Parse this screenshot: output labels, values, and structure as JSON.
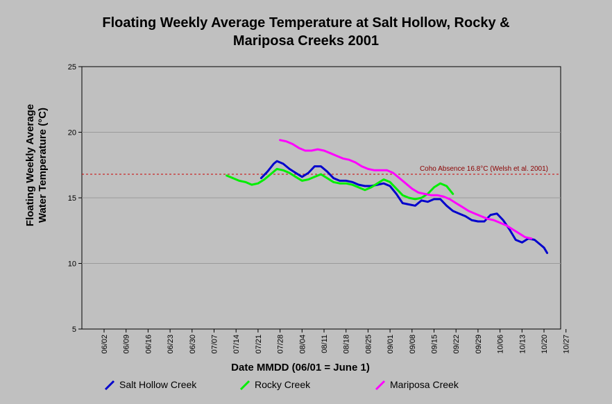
{
  "chart_data": {
    "type": "line",
    "title_line1": "Floating Weekly Average Temperature at Salt Hollow, Rocky &",
    "title_line2": "Mariposa Creeks 2001",
    "xlabel": "Date MMDD (06/01 = June 1)",
    "ylabel_line1": "Floating Weekly Average",
    "ylabel_line2": "Water Temperature (°C)",
    "x_ticks": [
      "06/02",
      "06/09",
      "06/16",
      "06/23",
      "06/30",
      "07/07",
      "07/14",
      "07/21",
      "07/28",
      "08/04",
      "08/11",
      "08/18",
      "08/25",
      "09/01",
      "09/08",
      "09/15",
      "09/22",
      "09/29",
      "10/06",
      "10/13",
      "10/20",
      "10/27"
    ],
    "y_ticks": [
      "25",
      "20",
      "15",
      "10",
      "5"
    ],
    "ylim": [
      5,
      25
    ],
    "grid": "horizontal",
    "legend_position": "bottom",
    "threshold": {
      "value": 16.8,
      "label": "Coho Absence 16.8°C (Welsh et al. 2001)",
      "color": "#cc0000"
    },
    "series": [
      {
        "name": "Salt Hollow Creek",
        "color": "#0000cc",
        "points": [
          [
            "07/22",
            16.5
          ],
          [
            "07/24",
            17.0
          ],
          [
            "07/26",
            17.6
          ],
          [
            "07/27",
            17.8
          ],
          [
            "07/29",
            17.6
          ],
          [
            "07/31",
            17.2
          ],
          [
            "08/02",
            16.9
          ],
          [
            "08/04",
            16.6
          ],
          [
            "08/06",
            16.9
          ],
          [
            "08/08",
            17.4
          ],
          [
            "08/10",
            17.4
          ],
          [
            "08/12",
            17.0
          ],
          [
            "08/14",
            16.5
          ],
          [
            "08/16",
            16.3
          ],
          [
            "08/18",
            16.3
          ],
          [
            "08/20",
            16.2
          ],
          [
            "08/22",
            16.0
          ],
          [
            "08/24",
            15.9
          ],
          [
            "08/26",
            15.9
          ],
          [
            "08/28",
            16.0
          ],
          [
            "08/30",
            16.1
          ],
          [
            "09/01",
            15.9
          ],
          [
            "09/03",
            15.3
          ],
          [
            "09/05",
            14.6
          ],
          [
            "09/07",
            14.5
          ],
          [
            "09/09",
            14.4
          ],
          [
            "09/11",
            14.8
          ],
          [
            "09/13",
            14.7
          ],
          [
            "09/15",
            14.9
          ],
          [
            "09/17",
            14.9
          ],
          [
            "09/19",
            14.4
          ],
          [
            "09/21",
            14.0
          ],
          [
            "09/23",
            13.8
          ],
          [
            "09/25",
            13.6
          ],
          [
            "09/27",
            13.3
          ],
          [
            "09/29",
            13.2
          ],
          [
            "10/01",
            13.2
          ],
          [
            "10/03",
            13.7
          ],
          [
            "10/05",
            13.8
          ],
          [
            "10/07",
            13.3
          ],
          [
            "10/09",
            12.6
          ],
          [
            "10/11",
            11.8
          ],
          [
            "10/13",
            11.6
          ],
          [
            "10/15",
            11.9
          ],
          [
            "10/17",
            11.8
          ],
          [
            "10/19",
            11.4
          ],
          [
            "10/20",
            11.2
          ],
          [
            "10/21",
            10.8
          ]
        ]
      },
      {
        "name": "Rocky Creek",
        "color": "#00ee00",
        "points": [
          [
            "07/11",
            16.7
          ],
          [
            "07/13",
            16.5
          ],
          [
            "07/15",
            16.3
          ],
          [
            "07/17",
            16.2
          ],
          [
            "07/19",
            16.0
          ],
          [
            "07/21",
            16.1
          ],
          [
            "07/23",
            16.4
          ],
          [
            "07/25",
            16.8
          ],
          [
            "07/27",
            17.2
          ],
          [
            "07/29",
            17.1
          ],
          [
            "07/31",
            16.9
          ],
          [
            "08/02",
            16.6
          ],
          [
            "08/04",
            16.3
          ],
          [
            "08/06",
            16.4
          ],
          [
            "08/08",
            16.6
          ],
          [
            "08/10",
            16.8
          ],
          [
            "08/12",
            16.5
          ],
          [
            "08/14",
            16.2
          ],
          [
            "08/16",
            16.1
          ],
          [
            "08/18",
            16.1
          ],
          [
            "08/20",
            16.0
          ],
          [
            "08/22",
            15.8
          ],
          [
            "08/24",
            15.6
          ],
          [
            "08/26",
            15.8
          ],
          [
            "08/28",
            16.1
          ],
          [
            "08/30",
            16.4
          ],
          [
            "09/01",
            16.2
          ],
          [
            "09/03",
            15.7
          ],
          [
            "09/05",
            15.2
          ],
          [
            "09/07",
            15.0
          ],
          [
            "09/09",
            14.9
          ],
          [
            "09/11",
            15.0
          ],
          [
            "09/13",
            15.3
          ],
          [
            "09/15",
            15.8
          ],
          [
            "09/17",
            16.1
          ],
          [
            "09/19",
            15.9
          ],
          [
            "09/21",
            15.3
          ]
        ]
      },
      {
        "name": "Mariposa Creek",
        "color": "#ff00ff",
        "points": [
          [
            "07/28",
            19.4
          ],
          [
            "07/30",
            19.3
          ],
          [
            "08/01",
            19.1
          ],
          [
            "08/03",
            18.8
          ],
          [
            "08/05",
            18.6
          ],
          [
            "08/07",
            18.6
          ],
          [
            "08/09",
            18.7
          ],
          [
            "08/11",
            18.6
          ],
          [
            "08/13",
            18.4
          ],
          [
            "08/15",
            18.2
          ],
          [
            "08/17",
            18.0
          ],
          [
            "08/19",
            17.9
          ],
          [
            "08/21",
            17.7
          ],
          [
            "08/23",
            17.4
          ],
          [
            "08/25",
            17.2
          ],
          [
            "08/27",
            17.1
          ],
          [
            "08/29",
            17.1
          ],
          [
            "08/31",
            17.1
          ],
          [
            "09/02",
            16.9
          ],
          [
            "09/04",
            16.5
          ],
          [
            "09/06",
            16.1
          ],
          [
            "09/08",
            15.7
          ],
          [
            "09/10",
            15.4
          ],
          [
            "09/12",
            15.3
          ],
          [
            "09/14",
            15.2
          ],
          [
            "09/16",
            15.2
          ],
          [
            "09/18",
            15.1
          ],
          [
            "09/20",
            14.9
          ],
          [
            "09/22",
            14.6
          ],
          [
            "09/24",
            14.3
          ],
          [
            "09/26",
            14.0
          ],
          [
            "09/28",
            13.8
          ],
          [
            "09/30",
            13.6
          ],
          [
            "10/02",
            13.4
          ],
          [
            "10/04",
            13.3
          ],
          [
            "10/06",
            13.1
          ],
          [
            "10/08",
            12.9
          ],
          [
            "10/10",
            12.6
          ],
          [
            "10/12",
            12.3
          ],
          [
            "10/14",
            12.0
          ],
          [
            "10/16",
            11.9
          ]
        ]
      }
    ]
  }
}
